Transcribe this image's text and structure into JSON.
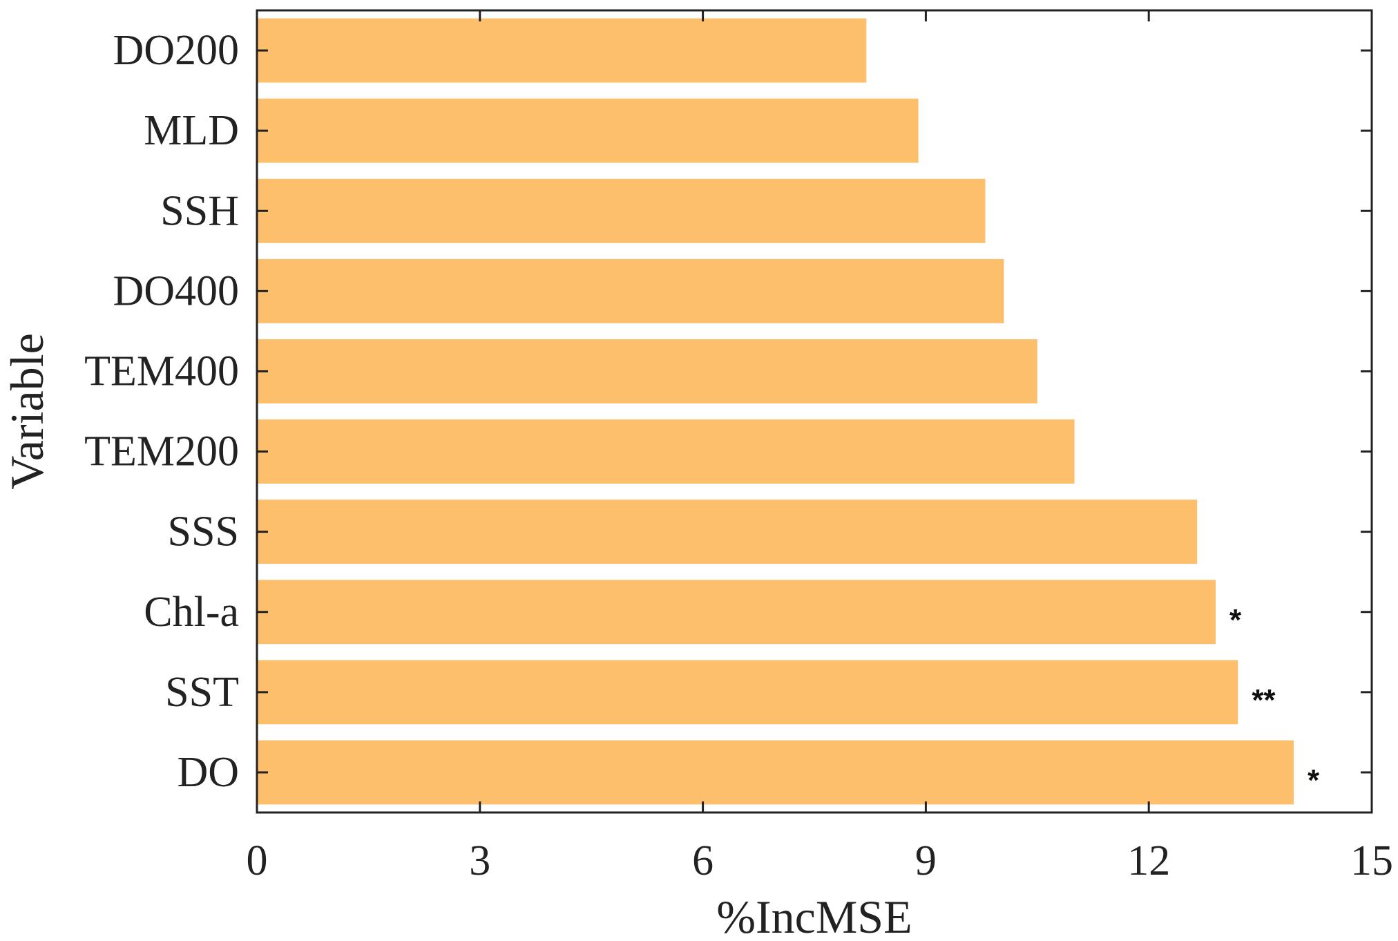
{
  "chart_data": {
    "type": "bar",
    "orientation": "horizontal",
    "categories": [
      "DO200",
      "MLD",
      "SSH",
      "DO400",
      "TEM400",
      "TEM200",
      "SSS",
      "Chl-a",
      "SST",
      "DO"
    ],
    "values": [
      8.2,
      8.9,
      9.8,
      10.05,
      10.5,
      11.0,
      12.65,
      12.9,
      13.2,
      13.95
    ],
    "significance": [
      "",
      "",
      "",
      "",
      "",
      "",
      "",
      "*",
      "**",
      "*"
    ],
    "xlabel": "%IncMSE",
    "ylabel": "Variable",
    "xlim": [
      0,
      15
    ],
    "xticks": [
      0,
      3,
      6,
      9,
      12,
      15
    ],
    "grid": false,
    "bar_color": "#FDBF6C",
    "axis_color": "#222222"
  }
}
